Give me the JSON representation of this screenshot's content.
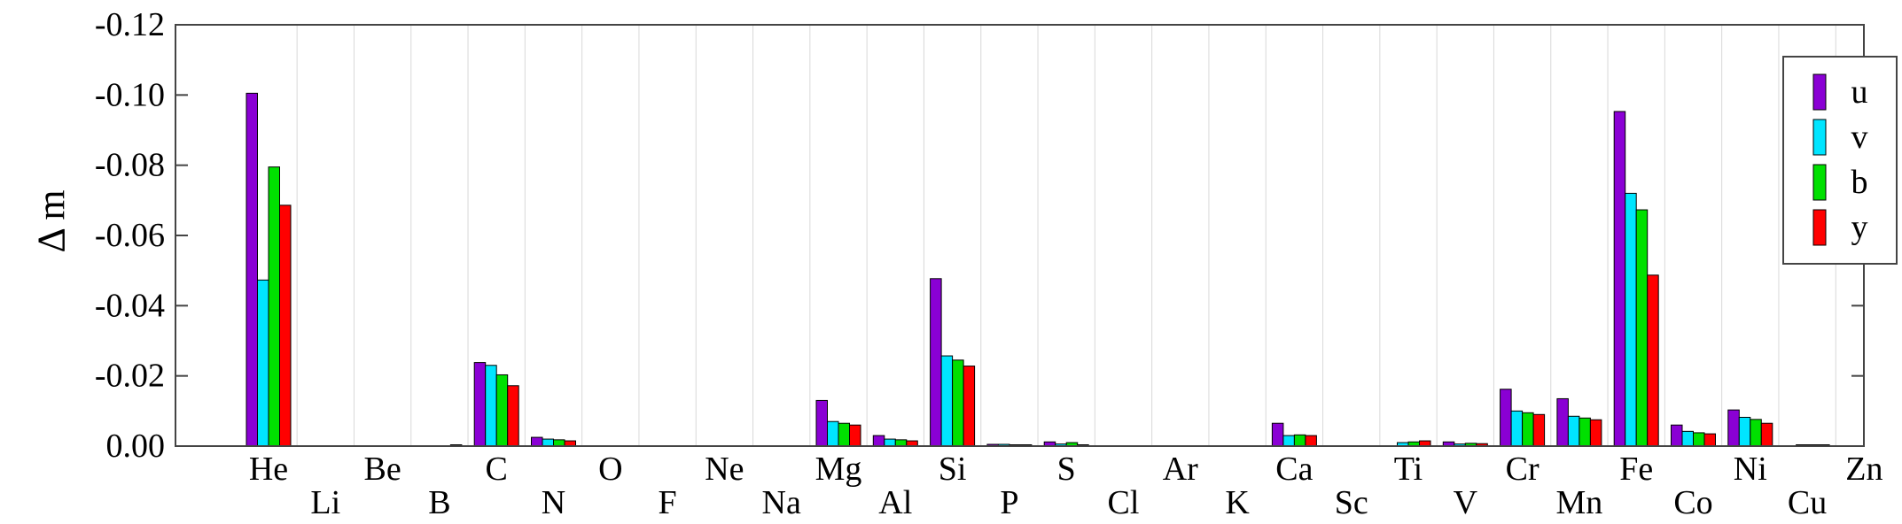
{
  "chart_data": {
    "type": "bar",
    "ylabel": "Δ m",
    "ylim": [
      0.0,
      -0.12
    ],
    "yticks": [
      "-0.12",
      "-0.10",
      "-0.08",
      "-0.06",
      "-0.04",
      "-0.02",
      "0.00"
    ],
    "ytick_values": [
      -0.12,
      -0.1,
      -0.08,
      -0.06,
      -0.04,
      -0.02,
      0.0
    ],
    "grid": "vertical",
    "legend_position": "top-right",
    "categories": [
      "He",
      "Li",
      "Be",
      "B",
      "C",
      "N",
      "O",
      "F",
      "Ne",
      "Na",
      "Mg",
      "Al",
      "Si",
      "P",
      "S",
      "Cl",
      "Ar",
      "K",
      "Ca",
      "Sc",
      "Ti",
      "V",
      "Cr",
      "Mn",
      "Fe",
      "Co",
      "Ni",
      "Cu",
      "Zn"
    ],
    "series": [
      {
        "name": "u",
        "color": "#8a00d4",
        "values": [
          -0.1005,
          0,
          0,
          0,
          -0.0238,
          -0.0025,
          0,
          0,
          0,
          0,
          -0.013,
          -0.003,
          -0.0477,
          -0.0005,
          -0.0012,
          0,
          0,
          0,
          -0.0065,
          0,
          0,
          -0.0012,
          -0.0162,
          -0.0135,
          -0.0953,
          -0.006,
          -0.0103,
          0,
          0
        ]
      },
      {
        "name": "v",
        "color": "#00e5ff",
        "values": [
          -0.0473,
          0,
          0,
          0,
          -0.023,
          -0.002,
          0,
          0,
          0,
          0,
          -0.007,
          -0.002,
          -0.0257,
          -0.0005,
          -0.0006,
          0,
          0,
          0,
          -0.003,
          0,
          -0.001,
          -0.0006,
          -0.01,
          -0.0085,
          -0.072,
          -0.0042,
          -0.0082,
          -0.0003,
          0
        ]
      },
      {
        "name": "b",
        "color": "#00e000",
        "values": [
          -0.0795,
          0,
          0,
          0,
          -0.0203,
          -0.0018,
          0,
          0,
          0,
          0,
          -0.0065,
          -0.0018,
          -0.0245,
          -0.0003,
          -0.001,
          0,
          0,
          0,
          -0.0032,
          0,
          -0.0012,
          -0.0008,
          -0.0095,
          -0.008,
          -0.0673,
          -0.0038,
          -0.0076,
          -0.0002,
          0
        ]
      },
      {
        "name": "y",
        "color": "#ff0000",
        "values": [
          -0.0686,
          0,
          0,
          -0.0002,
          -0.0172,
          -0.0015,
          0,
          0,
          0,
          0,
          -0.006,
          -0.0015,
          -0.0228,
          -0.0002,
          -0.0002,
          0,
          0,
          0,
          -0.003,
          0,
          -0.0015,
          -0.0007,
          -0.009,
          -0.0075,
          -0.0487,
          -0.0035,
          -0.0065,
          -0.0002,
          0
        ]
      }
    ]
  }
}
